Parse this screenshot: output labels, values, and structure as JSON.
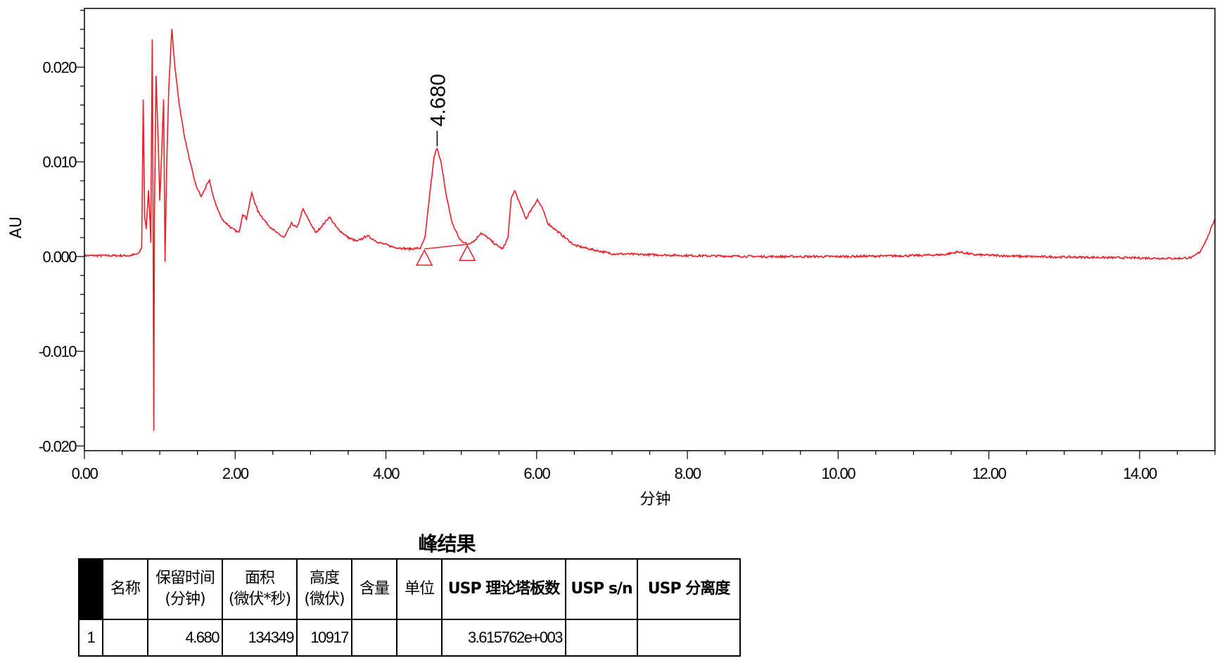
{
  "chart_data": {
    "type": "line",
    "xlabel": "分钟",
    "ylabel": "AU",
    "xlim": [
      0,
      15
    ],
    "ylim": [
      -0.0205,
      0.0262
    ],
    "x_ticks": [
      "0.00",
      "2.00",
      "4.00",
      "6.00",
      "8.00",
      "10.00",
      "12.00",
      "14.00"
    ],
    "y_ticks": [
      "0.020",
      "0.010",
      "0.000",
      "-0.010",
      "-0.020"
    ],
    "line_color": "#ee1c24",
    "series": [
      {
        "points": [
          [
            0.0,
            0.0001
          ],
          [
            0.3,
            0.0001
          ],
          [
            0.6,
            0.0001
          ],
          [
            0.72,
            0.0003
          ],
          [
            0.76,
            0.001
          ],
          [
            0.78,
            0.0166
          ],
          [
            0.8,
            0.004
          ],
          [
            0.82,
            0.003
          ],
          [
            0.85,
            0.007
          ],
          [
            0.87,
            0.004
          ],
          [
            0.88,
            0.0015
          ],
          [
            0.9,
            0.023
          ],
          [
            0.91,
            0.006
          ],
          [
            0.92,
            -0.0185
          ],
          [
            0.93,
            0.005
          ],
          [
            0.95,
            0.019
          ],
          [
            0.98,
            0.012
          ],
          [
            1.0,
            0.006
          ],
          [
            1.03,
            0.012
          ],
          [
            1.05,
            0.0166
          ],
          [
            1.07,
            -0.0005
          ],
          [
            1.09,
            0.009
          ],
          [
            1.12,
            0.018
          ],
          [
            1.16,
            0.024
          ],
          [
            1.2,
            0.02
          ],
          [
            1.26,
            0.016
          ],
          [
            1.32,
            0.013
          ],
          [
            1.4,
            0.01
          ],
          [
            1.48,
            0.0075
          ],
          [
            1.55,
            0.0063
          ],
          [
            1.62,
            0.0075
          ],
          [
            1.66,
            0.008
          ],
          [
            1.72,
            0.006
          ],
          [
            1.82,
            0.004
          ],
          [
            1.95,
            0.003
          ],
          [
            2.05,
            0.0025
          ],
          [
            2.1,
            0.0045
          ],
          [
            2.15,
            0.004
          ],
          [
            2.22,
            0.0067
          ],
          [
            2.3,
            0.0048
          ],
          [
            2.42,
            0.0035
          ],
          [
            2.55,
            0.0025
          ],
          [
            2.65,
            0.002
          ],
          [
            2.75,
            0.0035
          ],
          [
            2.82,
            0.003
          ],
          [
            2.9,
            0.005
          ],
          [
            2.98,
            0.0038
          ],
          [
            3.07,
            0.0025
          ],
          [
            3.18,
            0.0035
          ],
          [
            3.25,
            0.0042
          ],
          [
            3.35,
            0.003
          ],
          [
            3.5,
            0.002
          ],
          [
            3.62,
            0.0016
          ],
          [
            3.75,
            0.0022
          ],
          [
            3.9,
            0.0015
          ],
          [
            4.1,
            0.001
          ],
          [
            4.3,
            0.0008
          ],
          [
            4.46,
            0.0009
          ],
          [
            4.52,
            0.002
          ],
          [
            4.58,
            0.0065
          ],
          [
            4.64,
            0.0105
          ],
          [
            4.68,
            0.0115
          ],
          [
            4.73,
            0.01
          ],
          [
            4.8,
            0.0065
          ],
          [
            4.88,
            0.0035
          ],
          [
            4.98,
            0.0018
          ],
          [
            5.08,
            0.0013
          ],
          [
            5.18,
            0.0017
          ],
          [
            5.26,
            0.0025
          ],
          [
            5.35,
            0.002
          ],
          [
            5.45,
            0.0013
          ],
          [
            5.55,
            0.0008
          ],
          [
            5.62,
            0.002
          ],
          [
            5.66,
            0.006
          ],
          [
            5.71,
            0.007
          ],
          [
            5.78,
            0.0055
          ],
          [
            5.86,
            0.004
          ],
          [
            5.93,
            0.005
          ],
          [
            6.01,
            0.006
          ],
          [
            6.08,
            0.005
          ],
          [
            6.15,
            0.0035
          ],
          [
            6.3,
            0.0025
          ],
          [
            6.5,
            0.0012
          ],
          [
            6.7,
            0.0008
          ],
          [
            7.0,
            0.0003
          ],
          [
            7.5,
            0.0002
          ],
          [
            8.0,
            0.0001
          ],
          [
            9.0,
            0.0
          ],
          [
            10.0,
            0.0
          ],
          [
            11.0,
            0.0001
          ],
          [
            11.4,
            0.0002
          ],
          [
            11.6,
            0.0005
          ],
          [
            11.8,
            0.0002
          ],
          [
            12.5,
            0.0
          ],
          [
            13.5,
            -0.0001
          ],
          [
            14.5,
            -0.0002
          ],
          [
            14.7,
            -0.0001
          ],
          [
            14.8,
            0.0005
          ],
          [
            14.9,
            0.002
          ],
          [
            15.0,
            0.004
          ]
        ]
      }
    ],
    "peak": {
      "label": "4.680",
      "x": 4.68,
      "y": 0.0115
    },
    "integration_baseline": {
      "start": [
        4.51,
        0.0008
      ],
      "end": [
        5.08,
        0.0013
      ]
    }
  },
  "table": {
    "title": "峰结果",
    "headers": [
      {
        "lines": [
          "名称"
        ],
        "bold": false
      },
      {
        "lines": [
          "保留时间",
          "(分钟)"
        ],
        "bold": false
      },
      {
        "lines": [
          "面积",
          "(微伏*秒)"
        ],
        "bold": false
      },
      {
        "lines": [
          "高度",
          "(微伏)"
        ],
        "bold": false
      },
      {
        "lines": [
          "含量"
        ],
        "bold": false
      },
      {
        "lines": [
          "单位"
        ],
        "bold": false
      },
      {
        "lines": [
          "USP 理论塔板数"
        ],
        "bold": true
      },
      {
        "lines": [
          "USP s/n"
        ],
        "bold": true
      },
      {
        "lines": [
          "USP 分离度"
        ],
        "bold": true
      }
    ],
    "row": {
      "index": "1",
      "name": "",
      "rt": "4.680",
      "area": "134349",
      "height": "10917",
      "amount": "",
      "units": "",
      "plates": "3.615762e+003",
      "sn": "",
      "resolution": ""
    }
  }
}
